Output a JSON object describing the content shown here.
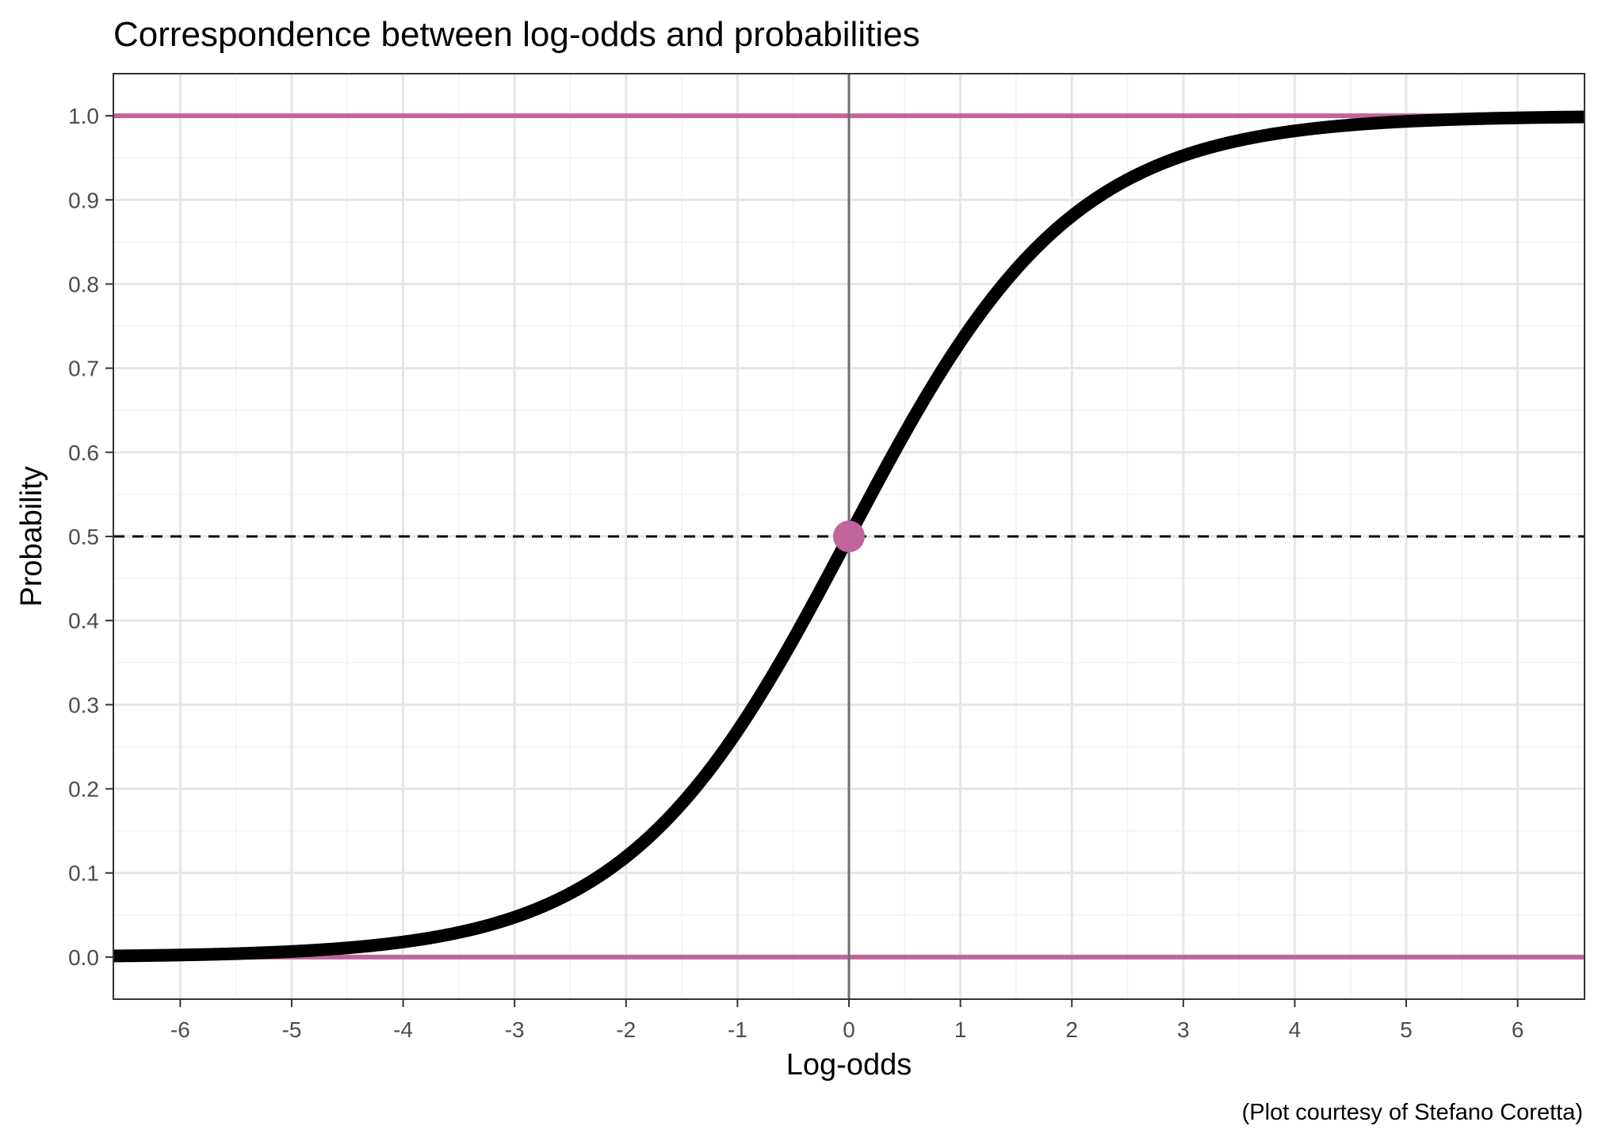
{
  "chart_data": {
    "type": "line",
    "title": "Correspondence between log-odds and probabilities",
    "xlabel": "Log-odds",
    "ylabel": "Probability",
    "caption": "(Plot courtesy of Stefano Coretta)",
    "xlim": [
      -6.6,
      6.6
    ],
    "ylim": [
      -0.05,
      1.05
    ],
    "x_ticks": [
      -6,
      -5,
      -4,
      -3,
      -2,
      -1,
      0,
      1,
      2,
      3,
      4,
      5,
      6
    ],
    "x_tick_labels": [
      "-6",
      "-5",
      "-4",
      "-3",
      "-2",
      "-1",
      "0",
      "1",
      "2",
      "3",
      "4",
      "5",
      "6"
    ],
    "y_ticks": [
      0,
      0.1,
      0.2,
      0.3,
      0.4,
      0.5,
      0.6,
      0.7,
      0.8,
      0.9,
      1
    ],
    "y_tick_labels": [
      "0.0",
      "0.1",
      "0.2",
      "0.3",
      "0.4",
      "0.5",
      "0.6",
      "0.7",
      "0.8",
      "0.9",
      "1.0"
    ],
    "grid": true,
    "series": [
      {
        "function": "logistic",
        "color": "#000000",
        "x": [
          -6.6,
          -6,
          -5,
          -4,
          -3,
          -2.5,
          -2,
          -1.5,
          -1,
          -0.5,
          0,
          0.5,
          1,
          1.5,
          2,
          2.5,
          3,
          4,
          5,
          6,
          6.6
        ],
        "values": [
          0.001,
          0.002,
          0.007,
          0.018,
          0.047,
          0.076,
          0.119,
          0.182,
          0.269,
          0.378,
          0.5,
          0.622,
          0.731,
          0.818,
          0.881,
          0.924,
          0.953,
          0.982,
          0.993,
          0.998,
          0.999
        ]
      }
    ],
    "reference_lines": [
      {
        "orientation": "horizontal",
        "y": 1.0,
        "color": "#c0649a",
        "style": "solid"
      },
      {
        "orientation": "horizontal",
        "y": 0.0,
        "color": "#c0649a",
        "style": "solid"
      },
      {
        "orientation": "horizontal",
        "y": 0.5,
        "color": "#000000",
        "style": "dashed"
      },
      {
        "orientation": "vertical",
        "x": 0,
        "color": "#6e6e6e",
        "style": "solid"
      }
    ],
    "points": [
      {
        "x": 0,
        "y": 0.5,
        "color": "#c0649a"
      }
    ]
  }
}
